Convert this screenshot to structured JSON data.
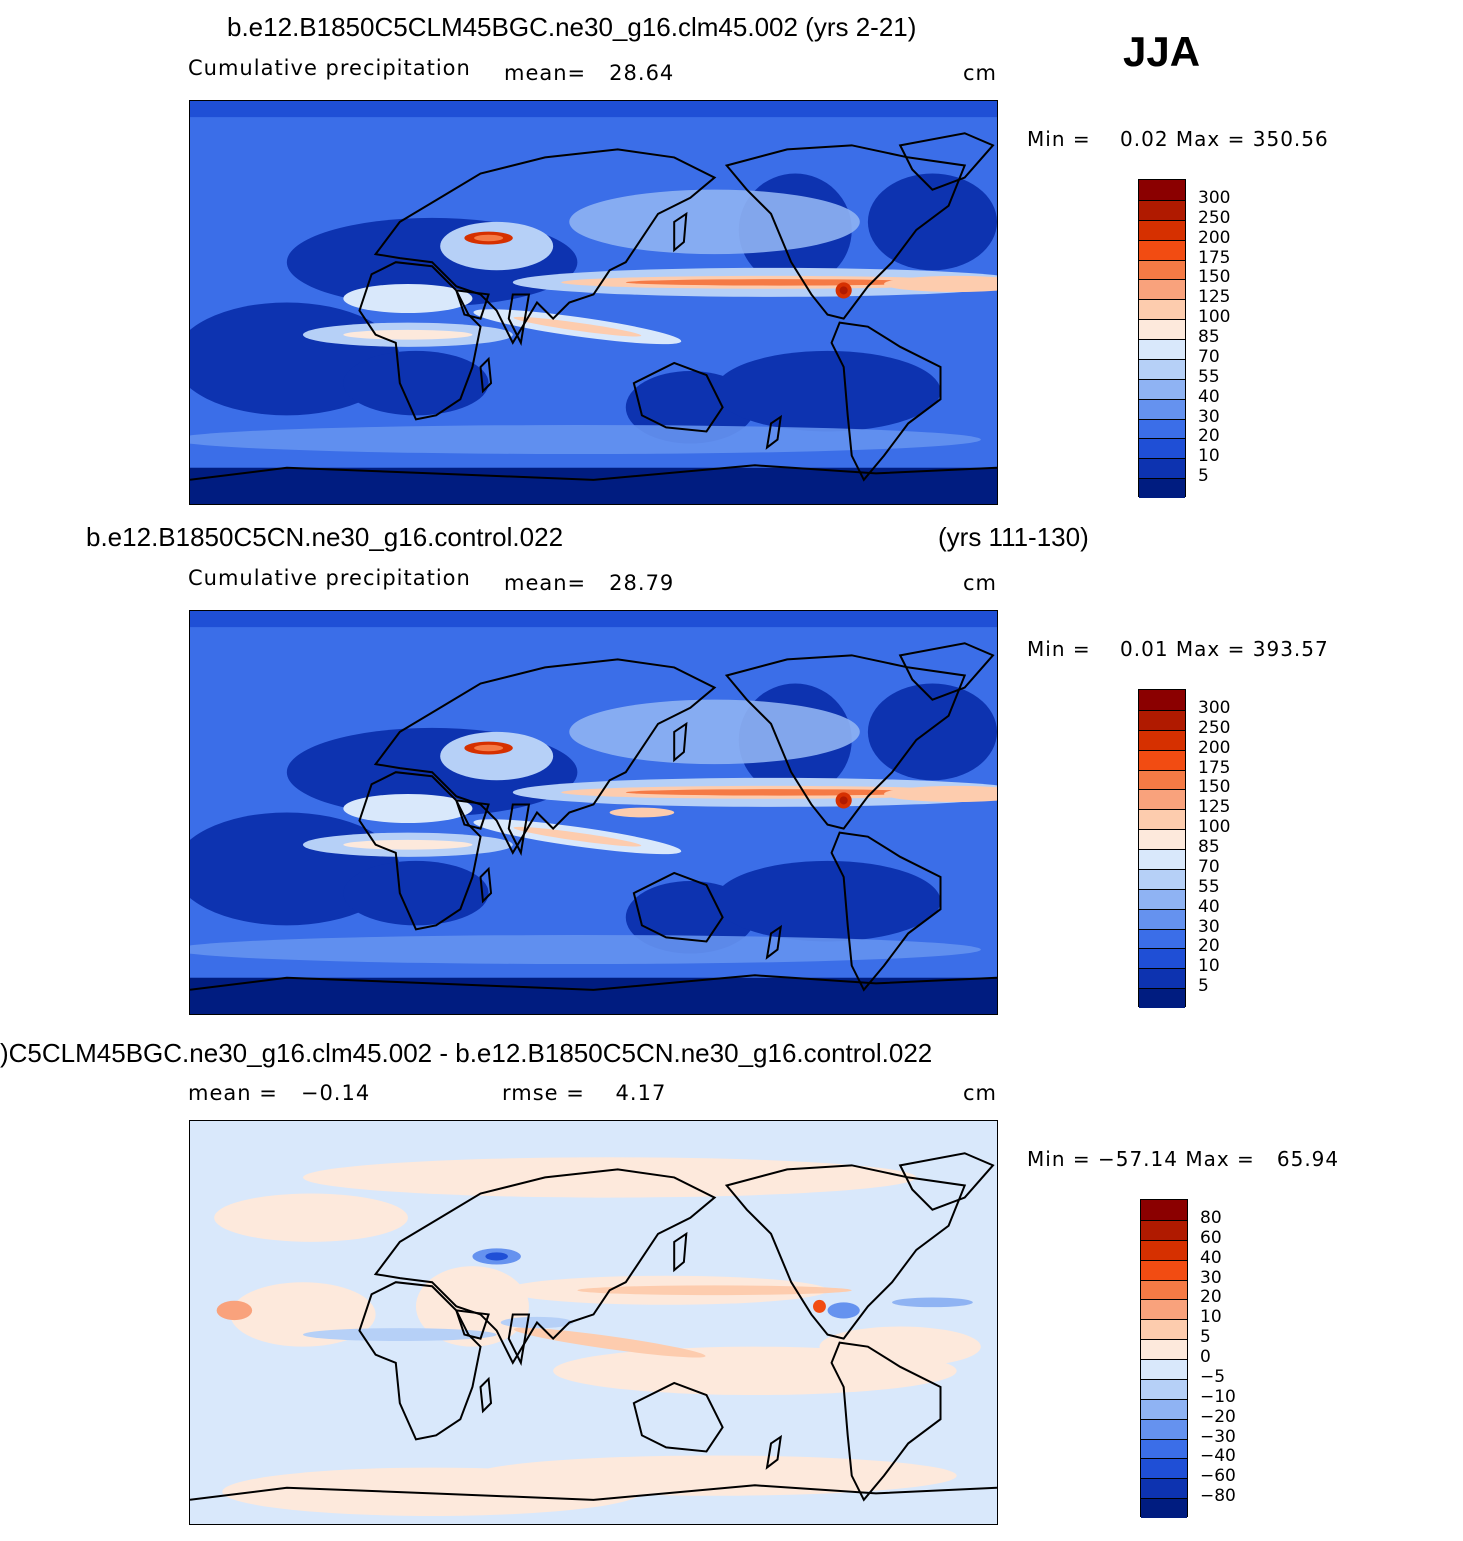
{
  "season": "JJA",
  "panels": [
    {
      "title_left": "b.e12.B1850C5CLM45BGC.ne30_g16.clm45.002 (yrs 2-21)",
      "title_right": "",
      "subtitle_left": "Cumulative precipitation",
      "subtitle_mid": "mean=   28.64",
      "units": "cm",
      "minmax": "Min =    0.02 Max = 350.56",
      "colorbar": {
        "labels": [
          "300",
          "250",
          "200",
          "175",
          "150",
          "125",
          "100",
          "85",
          "70",
          "55",
          "40",
          "30",
          "20",
          "10",
          "5"
        ],
        "colors": [
          "#8b0000",
          "#b01a00",
          "#d63000",
          "#f24c12",
          "#f57a45",
          "#f9a27c",
          "#fdccae",
          "#fde9dc",
          "#d9e8fb",
          "#b6d0f7",
          "#8fb3f3",
          "#6592ef",
          "#3b6ee8",
          "#1f4fd6",
          "#0d33b0",
          "#001c80"
        ]
      },
      "field": "precip"
    },
    {
      "title_left": "b.e12.B1850C5CN.ne30_g16.control.022",
      "title_right": "(yrs 111-130)",
      "subtitle_left": "Cumulative precipitation",
      "subtitle_mid": "mean=   28.79",
      "units": "cm",
      "minmax": "Min =    0.01 Max = 393.57",
      "colorbar": {
        "labels": [
          "300",
          "250",
          "200",
          "175",
          "150",
          "125",
          "100",
          "85",
          "70",
          "55",
          "40",
          "30",
          "20",
          "10",
          "5"
        ],
        "colors": [
          "#8b0000",
          "#b01a00",
          "#d63000",
          "#f24c12",
          "#f57a45",
          "#f9a27c",
          "#fdccae",
          "#fde9dc",
          "#d9e8fb",
          "#b6d0f7",
          "#8fb3f3",
          "#6592ef",
          "#3b6ee8",
          "#1f4fd6",
          "#0d33b0",
          "#001c80"
        ]
      },
      "field": "precip"
    },
    {
      "title_left": ")C5CLM45BGC.ne30_g16.clm45.002 - b.e12.B1850C5CN.ne30_g16.control.022",
      "title_right": "",
      "subtitle_left": "mean =   −0.14",
      "subtitle_mid": "rmse =    4.17",
      "units": "cm",
      "minmax": "Min = −57.14 Max =   65.94",
      "colorbar": {
        "labels": [
          "80",
          "60",
          "40",
          "30",
          "20",
          "10",
          "5",
          "0",
          "−5",
          "−10",
          "−20",
          "−30",
          "−40",
          "−60",
          "−80"
        ],
        "colors": [
          "#8b0000",
          "#b01a00",
          "#d63000",
          "#f24c12",
          "#f57a45",
          "#f9a27c",
          "#fdccae",
          "#fde9dc",
          "#d9e8fb",
          "#b6d0f7",
          "#8fb3f3",
          "#6592ef",
          "#3b6ee8",
          "#1f4fd6",
          "#0d33b0",
          "#001c80"
        ]
      },
      "field": "diff"
    }
  ]
}
